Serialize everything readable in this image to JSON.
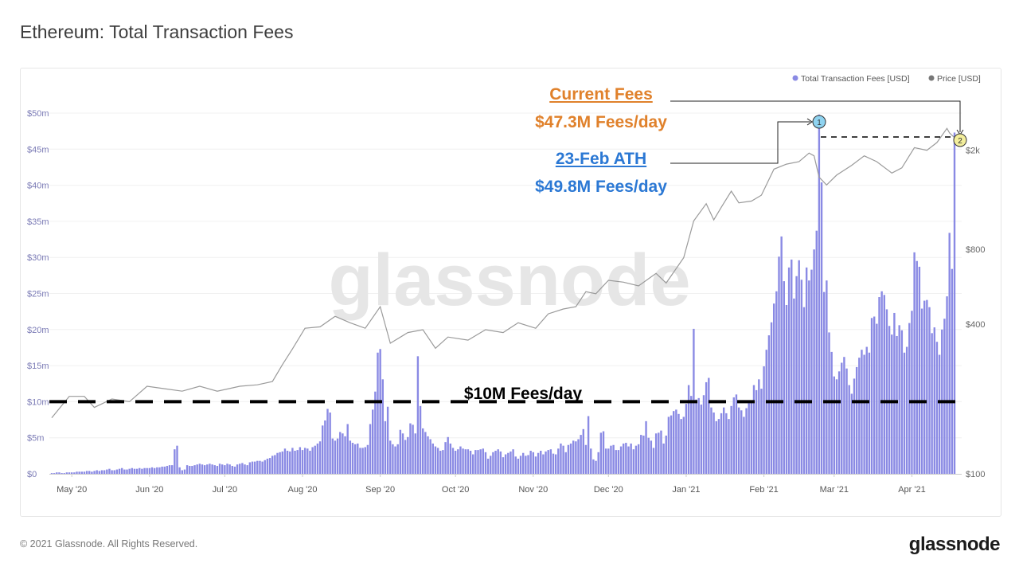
{
  "header": {
    "title": "Ethereum: Total Transaction Fees"
  },
  "footer": {
    "copyright": "© 2021 Glassnode. All Rights Reserved.",
    "logo": "glassnode"
  },
  "watermark": "glassnode",
  "colors": {
    "fees": "#8a8ae4",
    "price": "#9a9a9a",
    "current": "#e0812b",
    "ath": "#2b78d4",
    "ath_marker": "#8fd3f0",
    "current_marker": "#f3ee9c"
  },
  "annotations": {
    "current_title": "Current Fees",
    "current_value": "$47.3M Fees/day",
    "ath_title": "23-Feb ATH",
    "ath_value": "$49.8M Fees/day",
    "threshold_label": "$10M Fees/day",
    "threshold_value": 10,
    "ath_marker_label": "1",
    "current_marker_label": "2"
  },
  "chart_data": {
    "type": "bar",
    "title": "Ethereum: Total Transaction Fees",
    "legend": [
      {
        "name": "Total Transaction Fees [USD]",
        "color": "#8a8ae4"
      },
      {
        "name": "Price [USD]",
        "color": "#777777"
      }
    ],
    "legend_position": "top-right",
    "start_date": "2020-04-23",
    "x_ticks": [
      {
        "label": "May '20",
        "date": "2020-05-01"
      },
      {
        "label": "Jun '20",
        "date": "2020-06-01"
      },
      {
        "label": "Jul '20",
        "date": "2020-07-01"
      },
      {
        "label": "Aug '20",
        "date": "2020-08-01"
      },
      {
        "label": "Sep '20",
        "date": "2020-09-01"
      },
      {
        "label": "Oct '20",
        "date": "2020-10-01"
      },
      {
        "label": "Nov '20",
        "date": "2020-11-01"
      },
      {
        "label": "Dec '20",
        "date": "2020-12-01"
      },
      {
        "label": "Jan '21",
        "date": "2021-01-01"
      },
      {
        "label": "Feb '21",
        "date": "2021-02-01"
      },
      {
        "label": "Mar '21",
        "date": "2021-03-01"
      },
      {
        "label": "Apr '21",
        "date": "2021-04-01"
      }
    ],
    "y_left": {
      "label": "Total Transaction Fees [USD] (millions)",
      "ylim": [
        0,
        50
      ],
      "ticks": [
        {
          "v": 0,
          "label": "$0"
        },
        {
          "v": 5,
          "label": "$5m"
        },
        {
          "v": 10,
          "label": "$10m"
        },
        {
          "v": 15,
          "label": "$15m"
        },
        {
          "v": 20,
          "label": "$20m"
        },
        {
          "v": 25,
          "label": "$25m"
        },
        {
          "v": 30,
          "label": "$30m"
        },
        {
          "v": 35,
          "label": "$35m"
        },
        {
          "v": 40,
          "label": "$40m"
        },
        {
          "v": 45,
          "label": "$45m"
        },
        {
          "v": 50,
          "label": "$50m"
        }
      ]
    },
    "y_right": {
      "label": "Price [USD]",
      "scale": "log",
      "ylim": [
        100,
        2700
      ],
      "ticks": [
        {
          "v": 100,
          "label": "$100"
        },
        {
          "v": 400,
          "label": "$400"
        },
        {
          "v": 800,
          "label": "$800"
        },
        {
          "v": 2000,
          "label": "$2k"
        }
      ]
    },
    "fees_musd": [
      0.1,
      0.1,
      0.2,
      0.2,
      0.1,
      0.1,
      0.2,
      0.2,
      0.2,
      0.2,
      0.3,
      0.3,
      0.3,
      0.3,
      0.4,
      0.4,
      0.3,
      0.4,
      0.5,
      0.4,
      0.5,
      0.5,
      0.6,
      0.7,
      0.5,
      0.5,
      0.6,
      0.7,
      0.8,
      0.6,
      0.6,
      0.7,
      0.8,
      0.7,
      0.7,
      0.8,
      0.7,
      0.8,
      0.8,
      0.8,
      0.9,
      0.8,
      0.9,
      0.9,
      1.0,
      1.0,
      1.1,
      1.2,
      1.2,
      3.4,
      3.9,
      0.9,
      0.5,
      0.6,
      1.2,
      1.1,
      1.1,
      1.2,
      1.3,
      1.4,
      1.3,
      1.2,
      1.3,
      1.4,
      1.3,
      1.2,
      1.1,
      1.4,
      1.3,
      1.2,
      1.4,
      1.3,
      1.1,
      1.0,
      1.3,
      1.4,
      1.5,
      1.3,
      1.2,
      1.6,
      1.7,
      1.7,
      1.8,
      1.8,
      1.7,
      1.9,
      2.1,
      2.2,
      2.5,
      2.6,
      2.9,
      3.0,
      3.1,
      3.5,
      3.2,
      3.1,
      3.6,
      3.2,
      3.3,
      3.7,
      3.3,
      3.6,
      3.5,
      3.2,
      3.7,
      3.9,
      4.2,
      4.5,
      6.7,
      7.4,
      9.0,
      8.5,
      4.9,
      4.6,
      4.9,
      5.8,
      5.6,
      5.2,
      6.9,
      4.6,
      4.3,
      4.1,
      4.2,
      3.6,
      3.6,
      3.7,
      4.0,
      6.9,
      8.9,
      11.4,
      16.8,
      17.3,
      13.1,
      7.3,
      9.3,
      4.6,
      4.1,
      3.8,
      4.1,
      6.1,
      5.6,
      4.7,
      5.1,
      7.0,
      6.8,
      5.6,
      16.3,
      9.4,
      6.3,
      5.8,
      5.2,
      4.8,
      4.2,
      3.8,
      3.6,
      3.2,
      3.3,
      4.4,
      5.1,
      4.2,
      3.6,
      3.2,
      3.4,
      3.8,
      3.5,
      3.4,
      3.4,
      3.2,
      2.7,
      3.3,
      3.3,
      3.4,
      3.5,
      3.0,
      2.1,
      2.5,
      3.0,
      3.2,
      3.4,
      3.1,
      2.3,
      2.7,
      2.9,
      3.1,
      3.4,
      2.4,
      2.1,
      2.5,
      2.9,
      2.5,
      2.6,
      3.2,
      3.0,
      2.4,
      2.9,
      3.2,
      2.7,
      3.1,
      3.3,
      3.4,
      2.8,
      2.7,
      3.5,
      4.2,
      3.9,
      3.0,
      4.0,
      4.2,
      4.6,
      4.5,
      4.8,
      5.4,
      6.2,
      4.0,
      8.0,
      3.5,
      2.0,
      1.8,
      3.0,
      5.7,
      5.9,
      3.5,
      3.5,
      3.9,
      4.0,
      3.3,
      3.3,
      3.8,
      4.2,
      4.3,
      3.8,
      4.2,
      3.4,
      3.9,
      4.1,
      5.4,
      5.3,
      7.3,
      5.0,
      4.6,
      3.6,
      5.6,
      5.7,
      6.0,
      4.2,
      5.3,
      7.9,
      8.1,
      8.7,
      8.9,
      8.3,
      7.6,
      7.9,
      9.7,
      12.3,
      10.8,
      20.1,
      10.3,
      10.5,
      9.6,
      10.9,
      12.7,
      13.3,
      9.2,
      8.5,
      7.3,
      7.6,
      8.4,
      9.2,
      8.4,
      7.6,
      9.4,
      10.6,
      11.0,
      9.2,
      8.8,
      7.9,
      9.1,
      9.8,
      10.1,
      12.3,
      11.6,
      13.1,
      11.8,
      14.9,
      17.2,
      19.2,
      21.0,
      23.6,
      25.3,
      30.1,
      32.9,
      26.7,
      23.4,
      28.6,
      29.7,
      24.3,
      27.4,
      29.6,
      26.9,
      23.1,
      28.6,
      26.8,
      28.3,
      31.1,
      33.7,
      49.8,
      40.4,
      25.2,
      26.8,
      19.6,
      16.9,
      13.5,
      13.1,
      14.2,
      15.4,
      16.2,
      14.6,
      12.3,
      11.1,
      13.2,
      14.8,
      16.1,
      17.2,
      16.5,
      17.6,
      16.8,
      21.6,
      21.8,
      20.8,
      24.5,
      25.3,
      24.8,
      22.8,
      20.5,
      19.3,
      22.3,
      19.1,
      20.6,
      19.9,
      16.8,
      17.6,
      20.9,
      22.6,
      30.7,
      29.5,
      28.7,
      22.9,
      24.0,
      24.1,
      23.1,
      19.5,
      20.3,
      18.3,
      16.5,
      20.0,
      21.5,
      24.6,
      33.4,
      28.4,
      47.3
    ],
    "price_usd": [
      {
        "date": "2020-04-23",
        "v": 168
      },
      {
        "date": "2020-04-30",
        "v": 205
      },
      {
        "date": "2020-05-06",
        "v": 205
      },
      {
        "date": "2020-05-10",
        "v": 185
      },
      {
        "date": "2020-05-17",
        "v": 200
      },
      {
        "date": "2020-05-24",
        "v": 195
      },
      {
        "date": "2020-05-31",
        "v": 225
      },
      {
        "date": "2020-06-07",
        "v": 220
      },
      {
        "date": "2020-06-14",
        "v": 215
      },
      {
        "date": "2020-06-21",
        "v": 225
      },
      {
        "date": "2020-06-28",
        "v": 215
      },
      {
        "date": "2020-07-07",
        "v": 225
      },
      {
        "date": "2020-07-14",
        "v": 228
      },
      {
        "date": "2020-07-20",
        "v": 235
      },
      {
        "date": "2020-07-24",
        "v": 275
      },
      {
        "date": "2020-07-28",
        "v": 318
      },
      {
        "date": "2020-08-02",
        "v": 385
      },
      {
        "date": "2020-08-08",
        "v": 390
      },
      {
        "date": "2020-08-14",
        "v": 430
      },
      {
        "date": "2020-08-20",
        "v": 405
      },
      {
        "date": "2020-08-26",
        "v": 385
      },
      {
        "date": "2020-09-01",
        "v": 470
      },
      {
        "date": "2020-09-05",
        "v": 335
      },
      {
        "date": "2020-09-12",
        "v": 370
      },
      {
        "date": "2020-09-18",
        "v": 380
      },
      {
        "date": "2020-09-23",
        "v": 320
      },
      {
        "date": "2020-09-28",
        "v": 355
      },
      {
        "date": "2020-10-06",
        "v": 345
      },
      {
        "date": "2020-10-13",
        "v": 380
      },
      {
        "date": "2020-10-20",
        "v": 370
      },
      {
        "date": "2020-10-26",
        "v": 405
      },
      {
        "date": "2020-11-02",
        "v": 385
      },
      {
        "date": "2020-11-07",
        "v": 440
      },
      {
        "date": "2020-11-13",
        "v": 460
      },
      {
        "date": "2020-11-18",
        "v": 470
      },
      {
        "date": "2020-11-22",
        "v": 540
      },
      {
        "date": "2020-11-26",
        "v": 530
      },
      {
        "date": "2020-12-01",
        "v": 600
      },
      {
        "date": "2020-12-07",
        "v": 590
      },
      {
        "date": "2020-12-13",
        "v": 570
      },
      {
        "date": "2020-12-20",
        "v": 640
      },
      {
        "date": "2020-12-24",
        "v": 585
      },
      {
        "date": "2020-12-31",
        "v": 740
      },
      {
        "date": "2021-01-04",
        "v": 1040
      },
      {
        "date": "2021-01-09",
        "v": 1220
      },
      {
        "date": "2021-01-12",
        "v": 1050
      },
      {
        "date": "2021-01-15",
        "v": 1180
      },
      {
        "date": "2021-01-19",
        "v": 1370
      },
      {
        "date": "2021-01-22",
        "v": 1230
      },
      {
        "date": "2021-01-27",
        "v": 1250
      },
      {
        "date": "2021-01-31",
        "v": 1320
      },
      {
        "date": "2021-02-05",
        "v": 1680
      },
      {
        "date": "2021-02-10",
        "v": 1760
      },
      {
        "date": "2021-02-15",
        "v": 1800
      },
      {
        "date": "2021-02-19",
        "v": 1950
      },
      {
        "date": "2021-02-21",
        "v": 1900
      },
      {
        "date": "2021-02-23",
        "v": 1560
      },
      {
        "date": "2021-02-26",
        "v": 1450
      },
      {
        "date": "2021-03-02",
        "v": 1590
      },
      {
        "date": "2021-03-08",
        "v": 1740
      },
      {
        "date": "2021-03-13",
        "v": 1900
      },
      {
        "date": "2021-03-18",
        "v": 1800
      },
      {
        "date": "2021-03-24",
        "v": 1620
      },
      {
        "date": "2021-03-28",
        "v": 1700
      },
      {
        "date": "2021-04-02",
        "v": 2050
      },
      {
        "date": "2021-04-07",
        "v": 2000
      },
      {
        "date": "2021-04-11",
        "v": 2150
      },
      {
        "date": "2021-04-15",
        "v": 2450
      },
      {
        "date": "2021-04-16",
        "v": 2350
      },
      {
        "date": "2021-04-18",
        "v": 2250
      }
    ]
  }
}
